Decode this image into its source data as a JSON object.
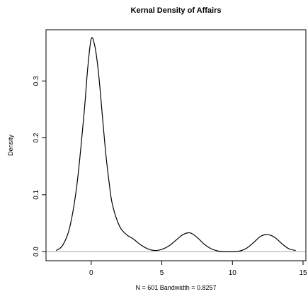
{
  "chart_data": {
    "type": "line",
    "title": "Kernal Density of Affairs",
    "xlabel": "N = 601   Bandwidth = 0.8257",
    "ylabel": "Density",
    "xlim": [
      -3.2,
      15.2
    ],
    "ylim": [
      -0.016,
      0.39
    ],
    "x_ticks": [
      0,
      5,
      10,
      15
    ],
    "x_tick_labels": [
      "0",
      "5",
      "10",
      "15"
    ],
    "y_ticks": [
      0.0,
      0.1,
      0.2,
      0.3
    ],
    "y_tick_labels": [
      "0.0",
      "0.1",
      "0.2",
      "0.3"
    ],
    "grid": false,
    "baseline_y": 0,
    "baseline_color": "#bdbdbd",
    "line_color": "#000000",
    "series": [
      {
        "x": [
          -2.48,
          -2.0,
          -1.5,
          -1.0,
          -0.5,
          -0.25,
          0.0,
          0.25,
          0.5,
          0.75,
          1.0,
          1.25,
          1.5,
          2.0,
          2.5,
          3.0,
          3.5,
          4.0,
          4.5,
          5.0,
          5.5,
          6.0,
          6.5,
          7.0,
          7.5,
          8.0,
          8.5,
          9.0,
          9.5,
          10.0,
          10.5,
          11.0,
          11.5,
          12.0,
          12.5,
          13.0,
          13.5,
          14.0,
          14.48
        ],
        "y": [
          0.002,
          0.012,
          0.045,
          0.12,
          0.245,
          0.322,
          0.374,
          0.362,
          0.318,
          0.25,
          0.18,
          0.125,
          0.083,
          0.045,
          0.03,
          0.022,
          0.012,
          0.005,
          0.002,
          0.004,
          0.01,
          0.02,
          0.03,
          0.033,
          0.025,
          0.013,
          0.005,
          0.001,
          0.0,
          0.0,
          0.001,
          0.006,
          0.016,
          0.027,
          0.03,
          0.025,
          0.014,
          0.005,
          0.002
        ]
      }
    ]
  }
}
